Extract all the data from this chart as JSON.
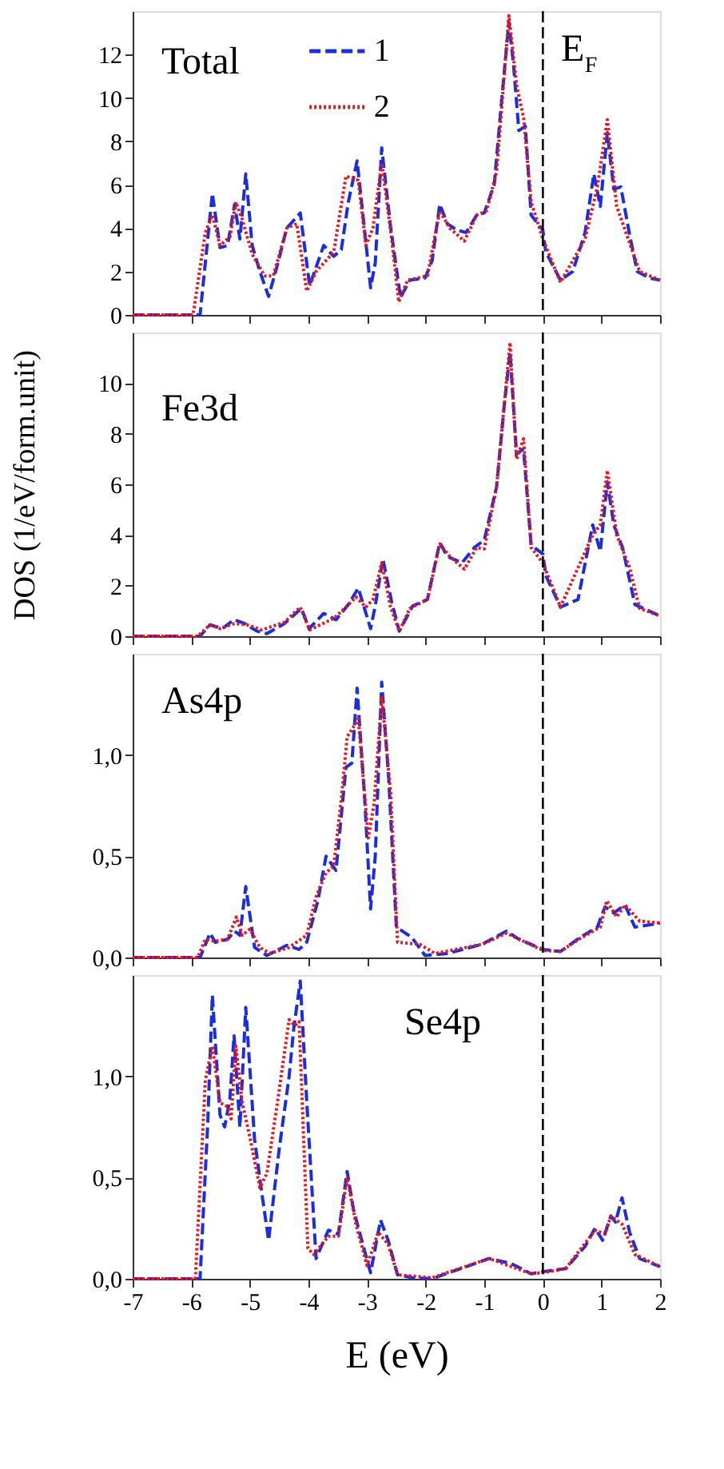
{
  "chart_data": [
    {
      "type": "line",
      "annotations": [
        "Total",
        "E$_{F}$"
      ],
      "legend": "top",
      "tick_labels": "y",
      "xlim": [
        -7,
        2
      ],
      "xticks": [
        -7,
        -6,
        -5,
        -4,
        -3,
        -2,
        -1,
        0,
        1,
        2
      ],
      "ylim": [
        0,
        14
      ],
      "yticks": [
        0,
        2,
        4,
        6,
        8,
        10,
        12
      ],
      "ref_lines": [
        {
          "axis": "x",
          "value": 0,
          "color": "#000000",
          "line_style": "dashed"
        }
      ],
      "series": [
        {
          "name": "1",
          "color": "#1a2ee0",
          "line_style": "dashed",
          "x": [
            -7,
            -6.01,
            -5.85,
            -5.64,
            -5.51,
            -5.38,
            -5.26,
            -5.17,
            -5.07,
            -4.96,
            -4.83,
            -4.68,
            -4.54,
            -4.37,
            -4.14,
            -3.98,
            -3.74,
            -3.57,
            -3.44,
            -3.32,
            -3.17,
            -3.05,
            -2.94,
            -2.86,
            -2.75,
            -2.6,
            -2.43,
            -2.27,
            -2.01,
            -1.89,
            -1.76,
            -1.63,
            -1.46,
            -1.31,
            -1.13,
            -1.0,
            -0.83,
            -0.71,
            -0.58,
            -0.5,
            -0.41,
            -0.3,
            -0.2,
            0,
            0.05,
            0.3,
            0.51,
            0.72,
            0.87,
            0.98,
            1.1,
            1.21,
            1.33,
            1.48,
            1.61,
            1.82,
            2
          ],
          "values": [
            0,
            0,
            0,
            5.6,
            3.1,
            3.2,
            5.1,
            3.5,
            6.5,
            3.2,
            2.0,
            0.85,
            2.2,
            4.0,
            4.7,
            1.35,
            3.2,
            2.7,
            3.0,
            5.2,
            7.1,
            4.1,
            1.25,
            2.4,
            7.7,
            4.1,
            0.8,
            1.6,
            1.7,
            2.5,
            5.1,
            4.2,
            3.9,
            3.8,
            4.6,
            4.7,
            6.0,
            9.7,
            13.5,
            11.5,
            8.5,
            8.7,
            4.6,
            3.9,
            2.9,
            1.6,
            2.0,
            3.8,
            6.5,
            5.0,
            8.4,
            5.8,
            5.9,
            3.7,
            2.0,
            1.7,
            1.6
          ]
        },
        {
          "name": "2",
          "color": "#e8141e",
          "line_style": "dotted",
          "x": [
            -7,
            -5.97,
            -5.76,
            -5.64,
            -5.51,
            -5.34,
            -5.24,
            -5.13,
            -4.96,
            -4.75,
            -4.6,
            -4.37,
            -4.2,
            -4.03,
            -3.87,
            -3.57,
            -3.36,
            -3.15,
            -3.02,
            -2.9,
            -2.75,
            -2.58,
            -2.46,
            -2.31,
            -1.97,
            -1.76,
            -1.59,
            -1.34,
            -1.13,
            -0.96,
            -0.79,
            -0.58,
            -0.45,
            -0.33,
            -0.2,
            0,
            0.3,
            0.72,
            0.93,
            1.1,
            1.26,
            1.43,
            1.65,
            2
          ],
          "values": [
            0,
            0,
            3.8,
            4.6,
            3.2,
            3.6,
            5.2,
            4.4,
            2.8,
            1.8,
            1.8,
            4.0,
            4.2,
            1.1,
            2.0,
            2.9,
            6.4,
            6.2,
            3.2,
            4.0,
            7.0,
            3.5,
            0.6,
            1.6,
            1.8,
            4.8,
            4.0,
            3.4,
            4.6,
            4.8,
            6.6,
            13.8,
            10.6,
            9.1,
            5.2,
            3.5,
            1.5,
            3.5,
            5.9,
            9.0,
            5.0,
            3.7,
            2.0,
            1.6
          ]
        }
      ]
    },
    {
      "type": "line",
      "annotations": [
        "Fe3d"
      ],
      "ylabel": "DOS (1/eV/form.unit)",
      "tick_labels": "y",
      "xlim": [
        -7,
        2
      ],
      "xticks": [
        -7,
        -6,
        -5,
        -4,
        -3,
        -2,
        -1,
        0,
        1,
        2
      ],
      "ylim": [
        0,
        12
      ],
      "yticks": [
        0,
        2,
        4,
        6,
        8,
        10
      ],
      "ref_lines": [
        {
          "axis": "x",
          "value": 0,
          "color": "#000000",
          "line_style": "dashed"
        }
      ],
      "series": [
        {
          "color": "#1a2ee0",
          "line_style": "dashed",
          "x": [
            -7,
            -5.85,
            -5.68,
            -5.47,
            -5.27,
            -5.09,
            -4.88,
            -4.71,
            -4.41,
            -4.12,
            -3.99,
            -3.74,
            -3.53,
            -3.32,
            -3.15,
            -2.94,
            -2.86,
            -2.73,
            -2.58,
            -2.45,
            -2.22,
            -1.97,
            -1.76,
            -1.63,
            -1.38,
            -1.17,
            -1.0,
            -0.79,
            -0.66,
            -0.56,
            -0.45,
            -0.33,
            -0.2,
            0,
            0.05,
            0.3,
            0.6,
            0.85,
            0.98,
            1.1,
            1.21,
            1.36,
            1.57,
            2
          ],
          "values": [
            0,
            0,
            0.45,
            0.3,
            0.65,
            0.5,
            0.2,
            0.1,
            0.5,
            1.1,
            0.3,
            0.9,
            0.65,
            1.25,
            1.9,
            0.3,
            1.2,
            3.05,
            1.35,
            0.2,
            1.2,
            1.45,
            3.7,
            3.15,
            2.9,
            3.5,
            3.8,
            5.9,
            9.1,
            11.2,
            7.2,
            7.4,
            3.6,
            3.25,
            2.4,
            1.15,
            1.45,
            4.4,
            3.35,
            6.1,
            4.4,
            3.5,
            1.25,
            0.8
          ]
        },
        {
          "color": "#e8141e",
          "line_style": "dotted",
          "x": [
            -7,
            -5.89,
            -5.68,
            -5.51,
            -5.26,
            -5.05,
            -4.8,
            -4.41,
            -4.14,
            -3.98,
            -3.57,
            -3.36,
            -3.19,
            -3.02,
            -2.9,
            -2.75,
            -2.6,
            -2.45,
            -2.27,
            -1.97,
            -1.76,
            -1.59,
            -1.34,
            -1.13,
            -1.0,
            -0.79,
            -0.56,
            -0.45,
            -0.33,
            -0.2,
            0,
            0.3,
            0.85,
            0.98,
            1.1,
            1.26,
            1.48,
            1.65,
            2
          ],
          "values": [
            0,
            0,
            0.45,
            0.3,
            0.5,
            0.45,
            0.25,
            0.55,
            1.15,
            0.25,
            0.7,
            1.15,
            1.55,
            1.15,
            1.45,
            2.9,
            1.15,
            0.2,
            1.1,
            1.45,
            3.65,
            3.15,
            2.65,
            3.5,
            3.45,
            5.9,
            11.6,
            7.0,
            7.8,
            3.5,
            2.9,
            1.15,
            4.0,
            4.4,
            6.55,
            4.0,
            2.7,
            1.1,
            0.8
          ]
        }
      ]
    },
    {
      "type": "line",
      "annotations": [
        "As4p"
      ],
      "tick_labels": "y",
      "xlim": [
        -7,
        2
      ],
      "xticks": [
        -7,
        -6,
        -5,
        -4,
        -3,
        -2,
        -1,
        0,
        1,
        2
      ],
      "ylim": [
        0,
        1.5
      ],
      "yticks": [
        {
          "value": 0,
          "label": "0,0"
        },
        {
          "value": 0.5,
          "label": "0,5"
        },
        {
          "value": 1,
          "label": "1,0"
        }
      ],
      "ref_lines": [
        {
          "axis": "x",
          "value": 0,
          "color": "#000000",
          "line_style": "dashed"
        }
      ],
      "series": [
        {
          "color": "#1a2ee0",
          "line_style": "dashed",
          "x": [
            -7,
            -5.85,
            -5.68,
            -5.59,
            -5.38,
            -5.26,
            -5.17,
            -5.07,
            -4.92,
            -4.71,
            -4.37,
            -4.16,
            -4.03,
            -3.84,
            -3.7,
            -3.53,
            -3.36,
            -3.26,
            -3.17,
            -3.04,
            -2.94,
            -2.86,
            -2.75,
            -2.63,
            -2.5,
            -2.24,
            -2.01,
            -1.63,
            -1.04,
            -0.62,
            -0.41,
            0,
            0.3,
            0.64,
            0.93,
            1.06,
            1.21,
            1.4,
            1.57,
            2
          ],
          "values": [
            0,
            0,
            0.12,
            0.075,
            0.09,
            0.13,
            0.11,
            0.35,
            0.05,
            0.01,
            0.06,
            0.04,
            0.075,
            0.28,
            0.5,
            0.43,
            0.94,
            0.96,
            1.33,
            0.78,
            0.24,
            0.5,
            1.36,
            0.88,
            0.15,
            0.1,
            0.01,
            0.02,
            0.065,
            0.13,
            0.09,
            0.04,
            0.03,
            0.1,
            0.15,
            0.25,
            0.22,
            0.26,
            0.15,
            0.17
          ]
        },
        {
          "color": "#e8141e",
          "line_style": "dotted",
          "x": [
            -7,
            -5.89,
            -5.76,
            -5.59,
            -5.38,
            -5.23,
            -5.13,
            -5.0,
            -4.83,
            -4.66,
            -4.33,
            -4.03,
            -3.87,
            -3.7,
            -3.57,
            -3.44,
            -3.34,
            -3.25,
            -3.15,
            -2.98,
            -2.88,
            -2.75,
            -2.6,
            -2.48,
            -2.1,
            -1.84,
            -1.04,
            -0.62,
            0,
            0.3,
            0.64,
            0.98,
            1.09,
            1.26,
            1.4,
            1.65,
            2
          ],
          "values": [
            0,
            0,
            0.09,
            0.08,
            0.09,
            0.2,
            0.11,
            0.14,
            0.05,
            0.02,
            0.05,
            0.11,
            0.3,
            0.42,
            0.45,
            0.78,
            1.09,
            1.13,
            1.18,
            0.59,
            0.76,
            1.29,
            0.82,
            0.075,
            0.065,
            0.02,
            0.065,
            0.12,
            0.035,
            0.03,
            0.095,
            0.15,
            0.28,
            0.2,
            0.26,
            0.18,
            0.17
          ]
        }
      ]
    },
    {
      "type": "line",
      "annotations": [
        "Se4p"
      ],
      "xlabel": "E (eV)",
      "xlim": [
        -7,
        2
      ],
      "xticks": [
        -7,
        -6,
        -5,
        -4,
        -3,
        -2,
        -1,
        0,
        1,
        2
      ],
      "ylim": [
        0,
        1.5
      ],
      "yticks": [
        {
          "value": 0,
          "label": "0,0"
        },
        {
          "value": 0.5,
          "label": "0,5"
        },
        {
          "value": 1,
          "label": "1,0"
        }
      ],
      "ref_lines": [
        {
          "axis": "x",
          "value": 0,
          "color": "#000000",
          "line_style": "dashed"
        }
      ],
      "series": [
        {
          "color": "#1a2ee0",
          "line_style": "dashed",
          "x": [
            -7,
            -5.85,
            -5.72,
            -5.64,
            -5.51,
            -5.43,
            -5.34,
            -5.27,
            -5.17,
            -5.07,
            -4.92,
            -4.79,
            -4.68,
            -4.5,
            -4.33,
            -4.25,
            -4.14,
            -4.03,
            -3.87,
            -3.66,
            -3.49,
            -3.34,
            -3.23,
            -3.11,
            -2.94,
            -2.77,
            -2.64,
            -2.48,
            -2.22,
            -1.89,
            -0.92,
            -0.54,
            -0.2,
            0,
            0.39,
            0.72,
            0.89,
            1.02,
            1.16,
            1.24,
            1.35,
            1.48,
            1.65,
            2
          ],
          "values": [
            0,
            0,
            0.76,
            1.4,
            0.81,
            0.75,
            0.89,
            1.2,
            0.75,
            1.34,
            0.69,
            0.41,
            0.19,
            0.64,
            1.0,
            1.24,
            1.47,
            0.88,
            0.1,
            0.24,
            0.22,
            0.53,
            0.34,
            0.21,
            0.03,
            0.29,
            0.19,
            0.02,
            0.005,
            0,
            0.1,
            0.075,
            0.025,
            0.035,
            0.05,
            0.16,
            0.25,
            0.19,
            0.31,
            0.28,
            0.4,
            0.23,
            0.1,
            0.06
          ]
        },
        {
          "color": "#e8141e",
          "line_style": "dotted",
          "x": [
            -7,
            -5.93,
            -5.76,
            -5.64,
            -5.51,
            -5.38,
            -5.32,
            -5.24,
            -5.13,
            -5.0,
            -4.83,
            -4.71,
            -4.54,
            -4.33,
            -4.23,
            -4.16,
            -4.01,
            -3.91,
            -3.66,
            -3.49,
            -3.34,
            -3.19,
            -3.0,
            -2.81,
            -2.64,
            -2.48,
            -1.89,
            -0.92,
            -0.2,
            0,
            0.39,
            0.89,
            1.06,
            1.16,
            1.35,
            1.57,
            2
          ],
          "values": [
            0,
            0,
            0.98,
            1.15,
            0.87,
            0.85,
            0.79,
            1.15,
            0.87,
            0.7,
            0.45,
            0.52,
            0.85,
            1.28,
            1.25,
            1.27,
            0.15,
            0.12,
            0.21,
            0.21,
            0.5,
            0.27,
            0.065,
            0.23,
            0.17,
            0.02,
            0.005,
            0.1,
            0.025,
            0.03,
            0.05,
            0.24,
            0.22,
            0.31,
            0.27,
            0.12,
            0.06
          ]
        }
      ]
    }
  ]
}
